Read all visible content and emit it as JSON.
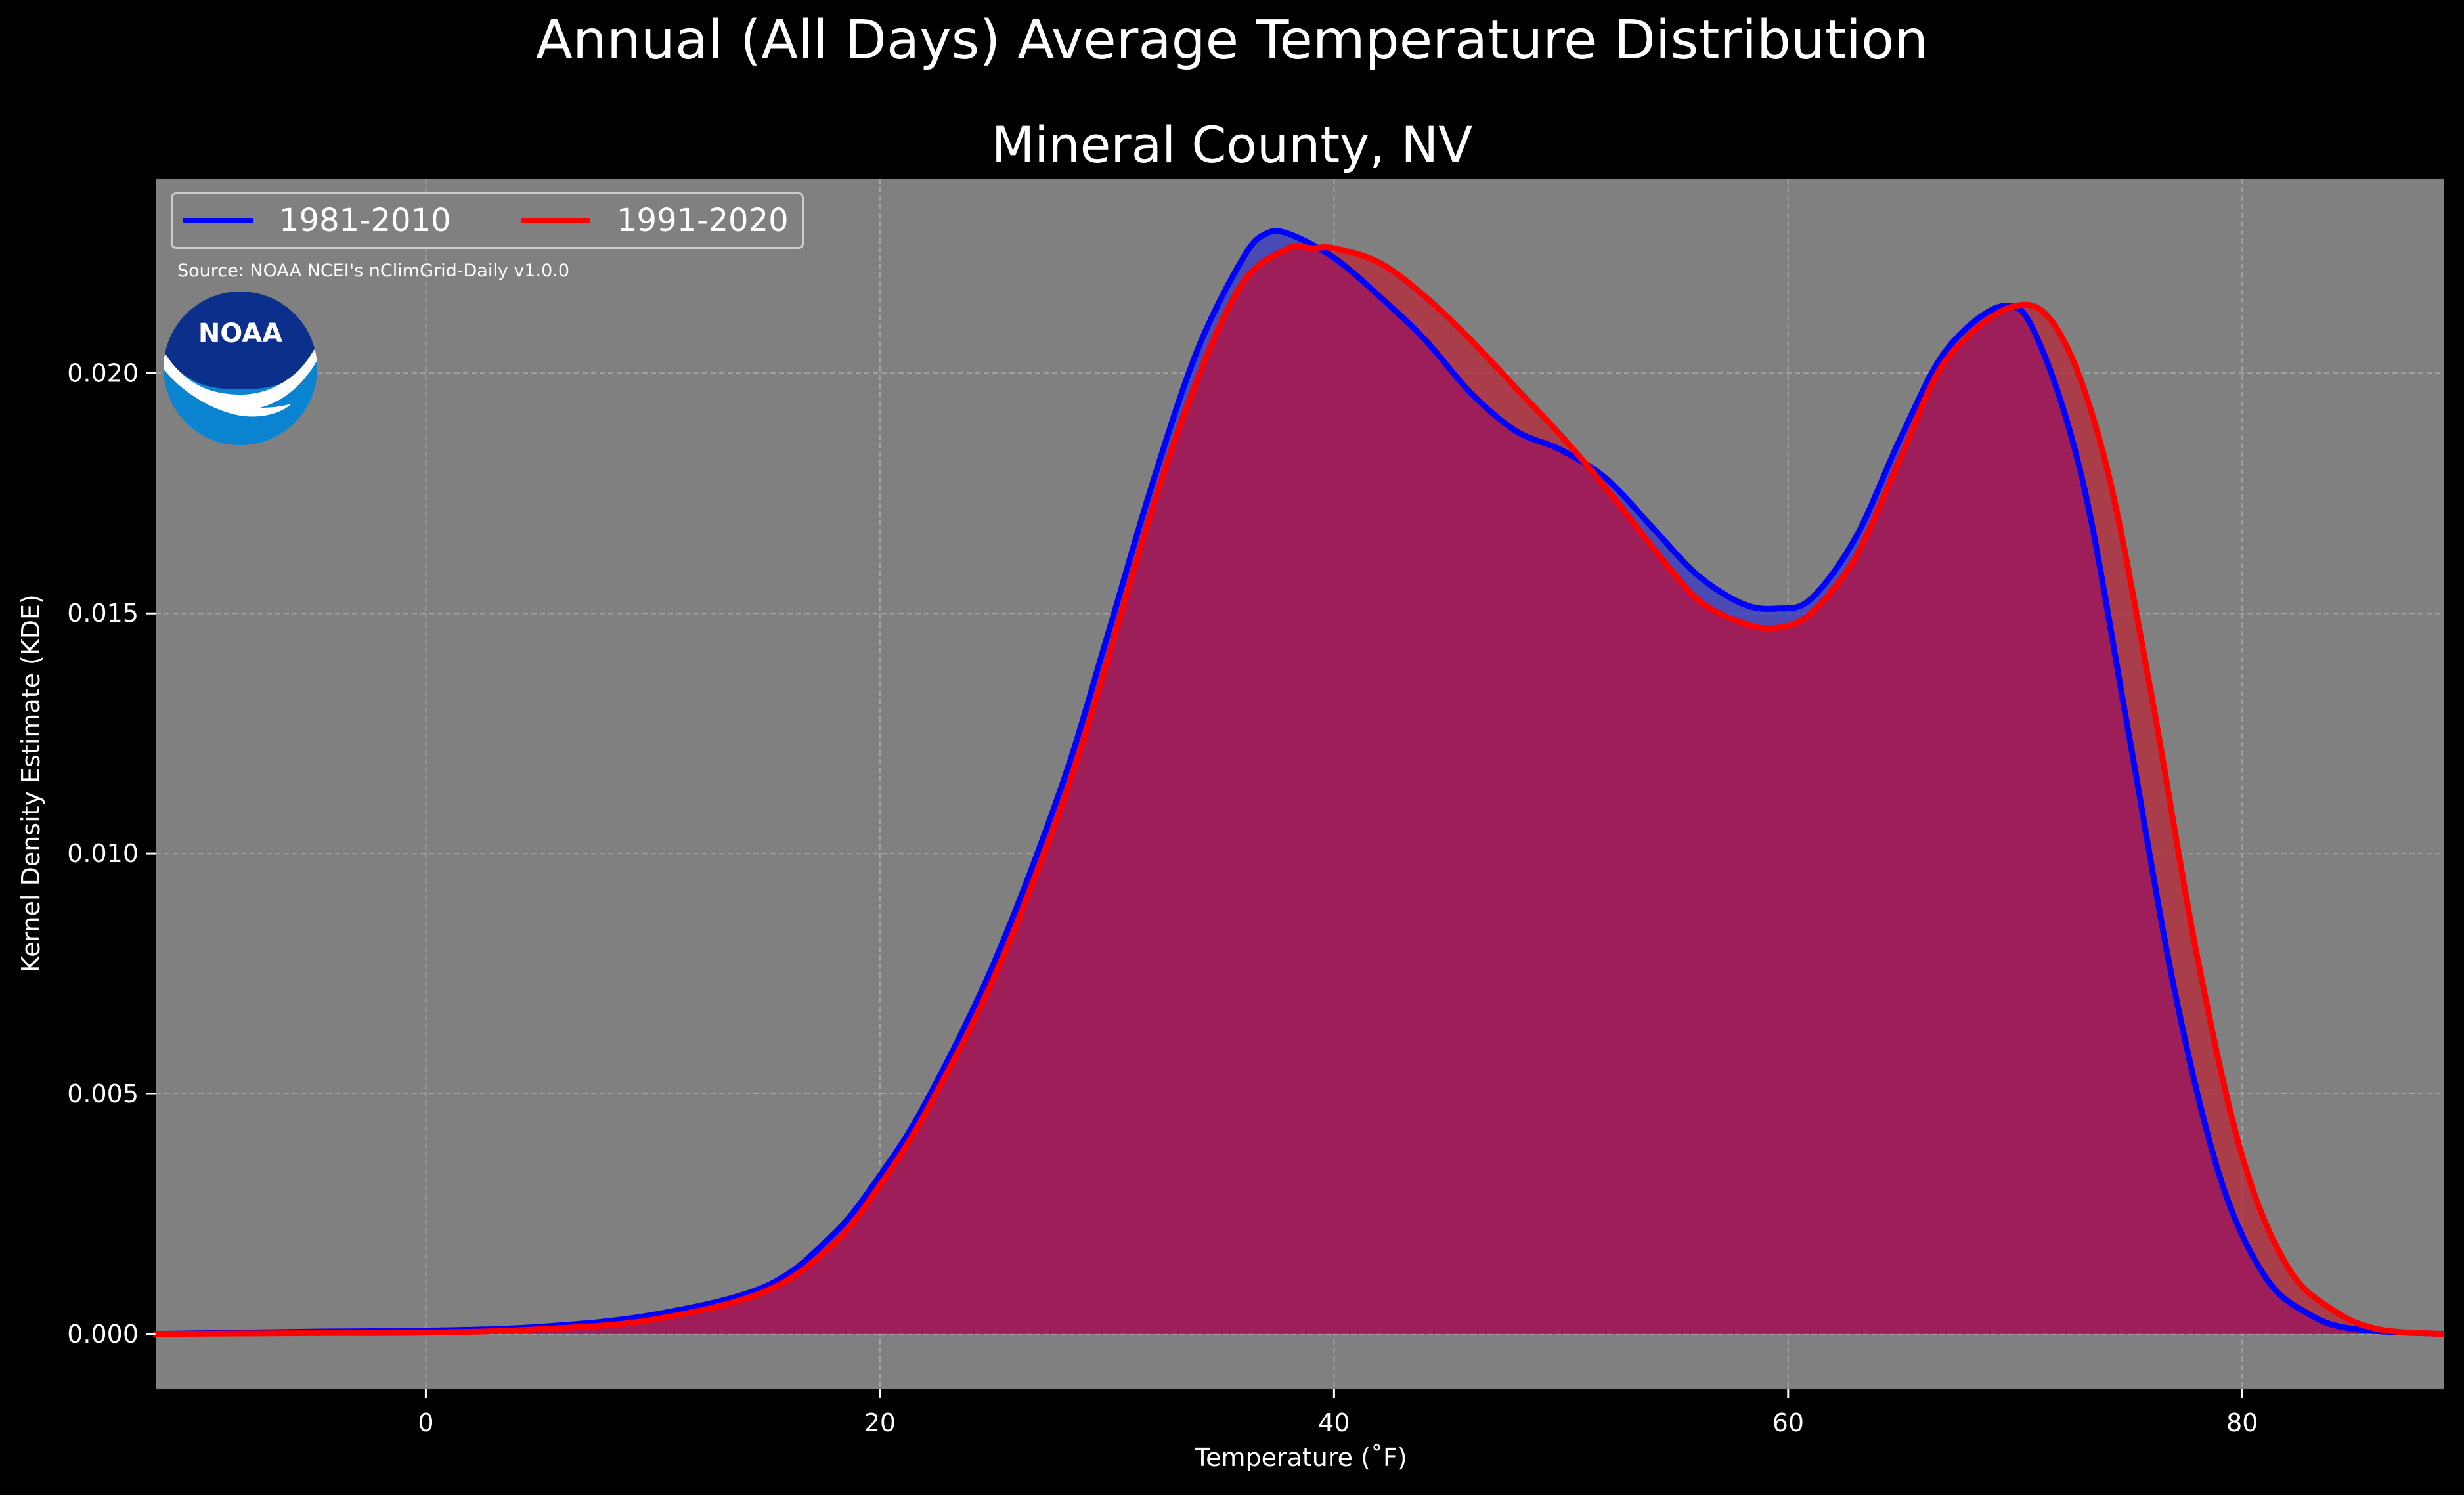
{
  "chart_data": {
    "type": "area",
    "title": "Annual (All Days) Average Temperature Distribution",
    "subtitle": "Mineral County, NV",
    "xlabel": "Temperature ($^\\circ$F)",
    "xlabel_display": "Temperature (˚F)",
    "ylabel": "Kernel Density Estimate (KDE)",
    "source": "Source: NOAA NCEI's nClimGrid-Daily v1.0.0",
    "xlim": [
      -11.9,
      88.9
    ],
    "ylim": [
      -0.00115,
      0.02405
    ],
    "xticks": [
      0,
      20,
      40,
      60,
      80
    ],
    "xtick_labels": [
      "0",
      "20",
      "40",
      "60",
      "80"
    ],
    "yticks": [
      0.0,
      0.005,
      0.01,
      0.015,
      0.02
    ],
    "ytick_labels": [
      "0.000",
      "0.005",
      "0.010",
      "0.015",
      "0.020"
    ],
    "grid": true,
    "legend_position": "upper-left",
    "logo": "NOAA",
    "colors": {
      "background": "#000000",
      "axes_background": "#808080",
      "series1": "#0000ff",
      "series2": "#ff0000",
      "fill1": "#3333cc",
      "fill2": "#bb2233"
    },
    "series": [
      {
        "name": "1981-2010",
        "color": "#0000ff",
        "x": [
          -12,
          -5,
          0,
          5,
          10,
          15,
          18,
          20,
          22,
          25,
          28,
          30,
          32,
          34,
          36,
          37,
          38,
          40,
          42,
          44,
          46,
          48,
          50,
          52,
          54,
          56,
          58,
          59.5,
          61,
          63,
          65,
          67,
          69.5,
          71,
          73,
          75,
          77,
          79,
          81,
          83,
          85,
          88.9
        ],
        "y": [
          0.0,
          5e-05,
          7e-05,
          0.00015,
          0.0004,
          0.001,
          0.0021,
          0.0033,
          0.0048,
          0.0077,
          0.0114,
          0.0145,
          0.0177,
          0.0205,
          0.0224,
          0.0229,
          0.0229,
          0.0224,
          0.0216,
          0.0207,
          0.0196,
          0.0188,
          0.0184,
          0.0178,
          0.0168,
          0.0158,
          0.0152,
          0.0151,
          0.0153,
          0.0166,
          0.0187,
          0.0205,
          0.0214,
          0.0207,
          0.0177,
          0.0125,
          0.0072,
          0.0033,
          0.0012,
          0.0004,
          0.0001,
          0.0
        ]
      },
      {
        "name": "1991-2020",
        "color": "#ff0000",
        "x": [
          -12,
          -5,
          0,
          5,
          10,
          15,
          18,
          20,
          22,
          25,
          28,
          30,
          32,
          34,
          36,
          38,
          39,
          40,
          42,
          44,
          46,
          48,
          50,
          52,
          54,
          56,
          58,
          59.5,
          61,
          63,
          65,
          67,
          70,
          72,
          74,
          76,
          78,
          80,
          82,
          84,
          86,
          88.9
        ],
        "y": [
          0.0,
          2e-05,
          3e-05,
          0.0001,
          0.0003,
          0.0009,
          0.0019,
          0.0031,
          0.0046,
          0.0074,
          0.011,
          0.014,
          0.0172,
          0.0199,
          0.0219,
          0.0226,
          0.0226,
          0.0226,
          0.0223,
          0.0216,
          0.0207,
          0.0197,
          0.0187,
          0.0176,
          0.0164,
          0.0153,
          0.0148,
          0.0147,
          0.015,
          0.0162,
          0.0183,
          0.0203,
          0.0214,
          0.0208,
          0.0181,
          0.0133,
          0.0079,
          0.0037,
          0.0014,
          0.0005,
          0.0001,
          0.0
        ]
      }
    ]
  }
}
